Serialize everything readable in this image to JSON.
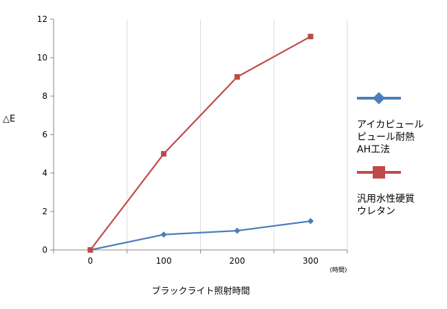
{
  "chart_data": {
    "type": "line",
    "x": [
      0,
      100,
      200,
      300
    ],
    "ylabel": "△E",
    "xlabel": "ブラックライト照射時間",
    "x_unit": "(時間)",
    "ylim": [
      0,
      12
    ],
    "y_ticks": [
      0,
      2,
      4,
      6,
      8,
      10,
      12
    ],
    "x_ticks": [
      0,
      100,
      200,
      300
    ],
    "grid": "vertical",
    "legend_position": "right",
    "series": [
      {
        "name_lines": [
          "アイカピュール",
          "ピュール耐熱",
          "AH工法"
        ],
        "values": [
          0,
          0.8,
          1.0,
          1.5
        ],
        "color": "#4a7ebb",
        "marker": "diamond"
      },
      {
        "name_lines": [
          "汎用水性硬質",
          "ウレタン"
        ],
        "values": [
          0,
          5,
          9,
          11.1
        ],
        "color": "#be4b48",
        "marker": "square"
      }
    ]
  }
}
